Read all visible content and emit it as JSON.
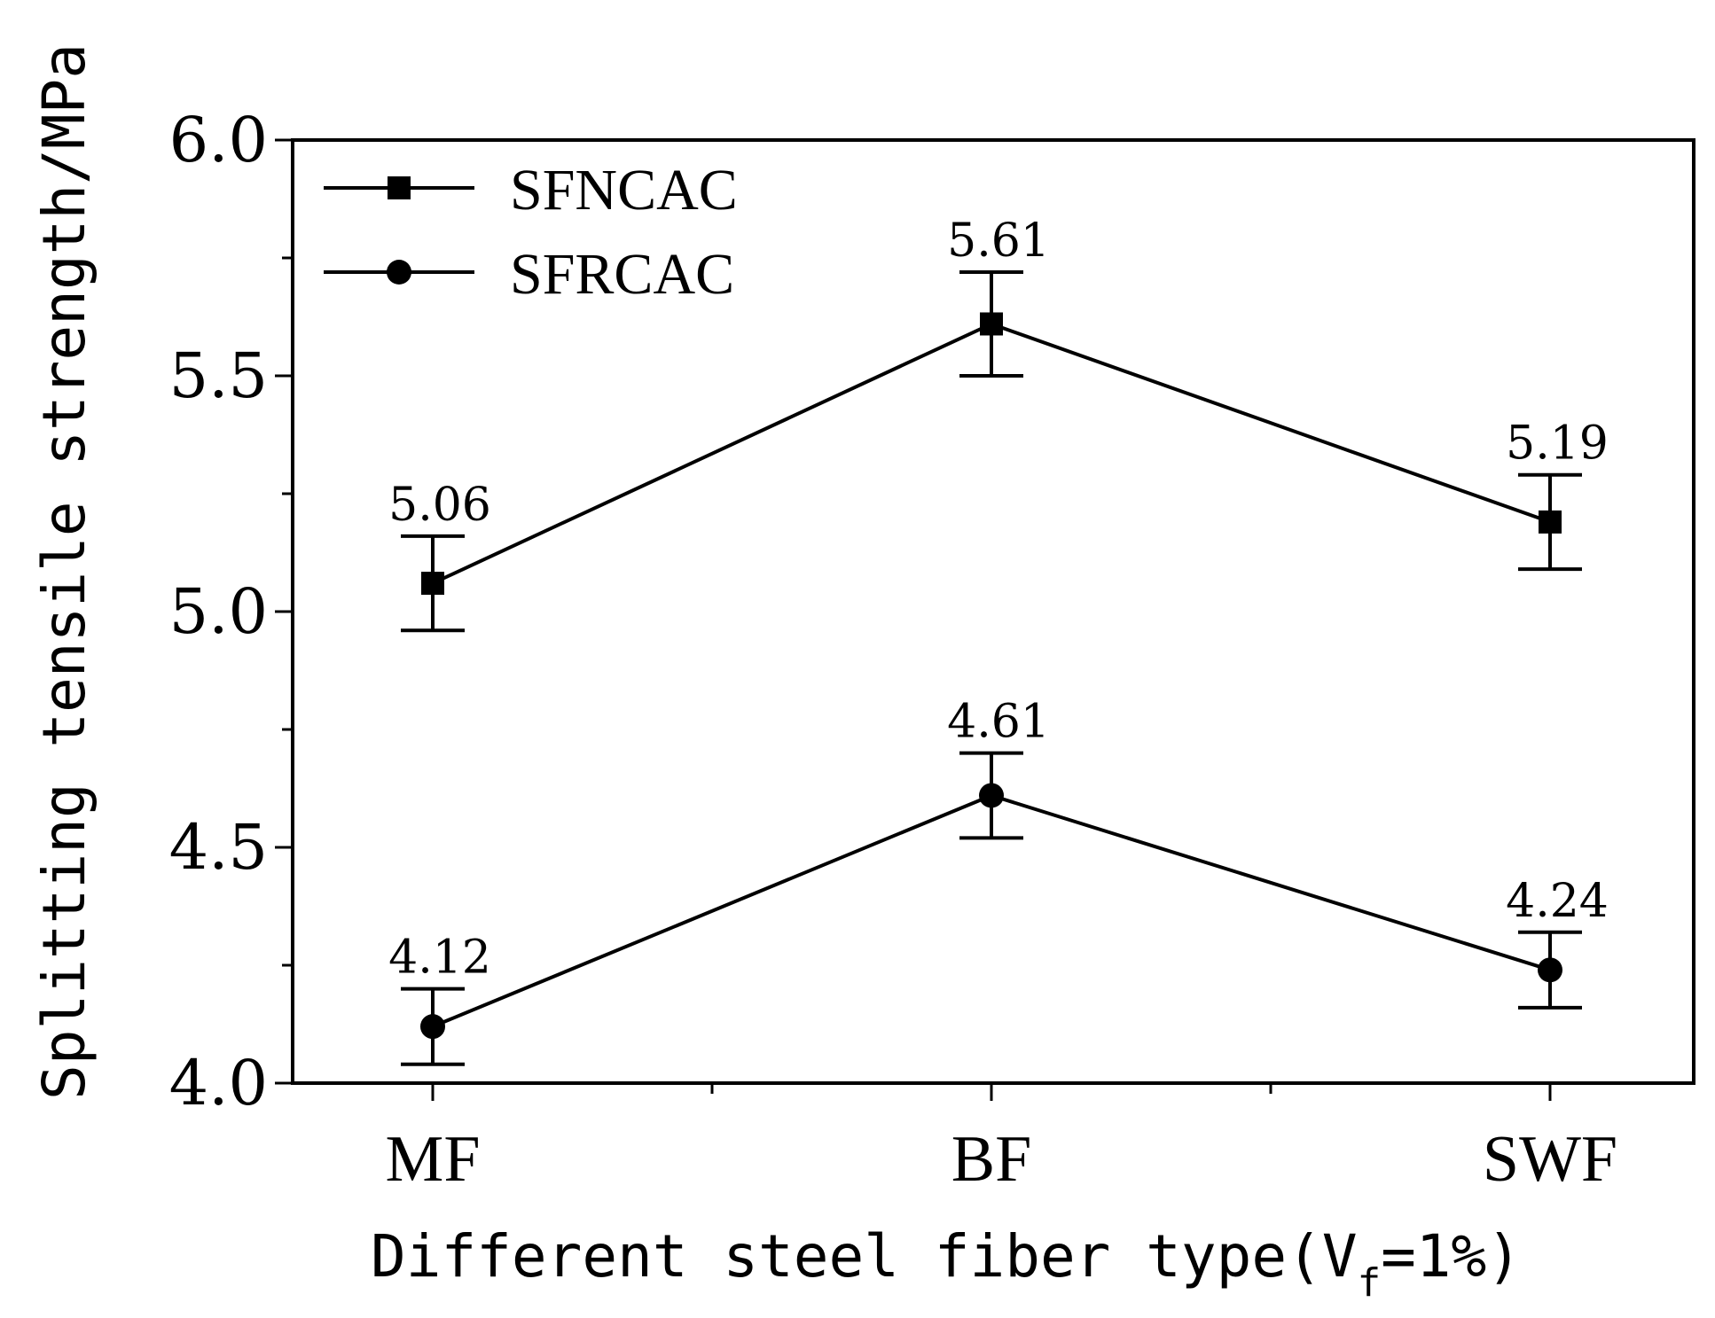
{
  "chart_data": {
    "type": "line",
    "title": "",
    "xlabel": "Different steel fiber type(V",
    "xlabel_subscript": "f",
    "xlabel_suffix": "=1%)",
    "ylabel": "Splitting tensile strength/MPa",
    "categories": [
      "MF",
      "BF",
      "SWF"
    ],
    "ylim": [
      4.0,
      6.0
    ],
    "yticks": [
      "4.0",
      "4.5",
      "5.0",
      "5.5",
      "6.0"
    ],
    "grid": false,
    "legend_position": "top-left",
    "series": [
      {
        "name": "SFNCAC",
        "marker": "square",
        "values": [
          5.06,
          5.61,
          5.19
        ],
        "error_low": [
          4.96,
          5.5,
          5.09
        ],
        "error_high": [
          5.16,
          5.72,
          5.29
        ],
        "labels": [
          "5.06",
          "5.61",
          "5.19"
        ]
      },
      {
        "name": "SFRCAC",
        "marker": "circle",
        "values": [
          4.12,
          4.61,
          4.24
        ],
        "error_low": [
          4.04,
          4.52,
          4.16
        ],
        "error_high": [
          4.2,
          4.7,
          4.32
        ],
        "labels": [
          "4.12",
          "4.61",
          "4.24"
        ]
      }
    ]
  }
}
